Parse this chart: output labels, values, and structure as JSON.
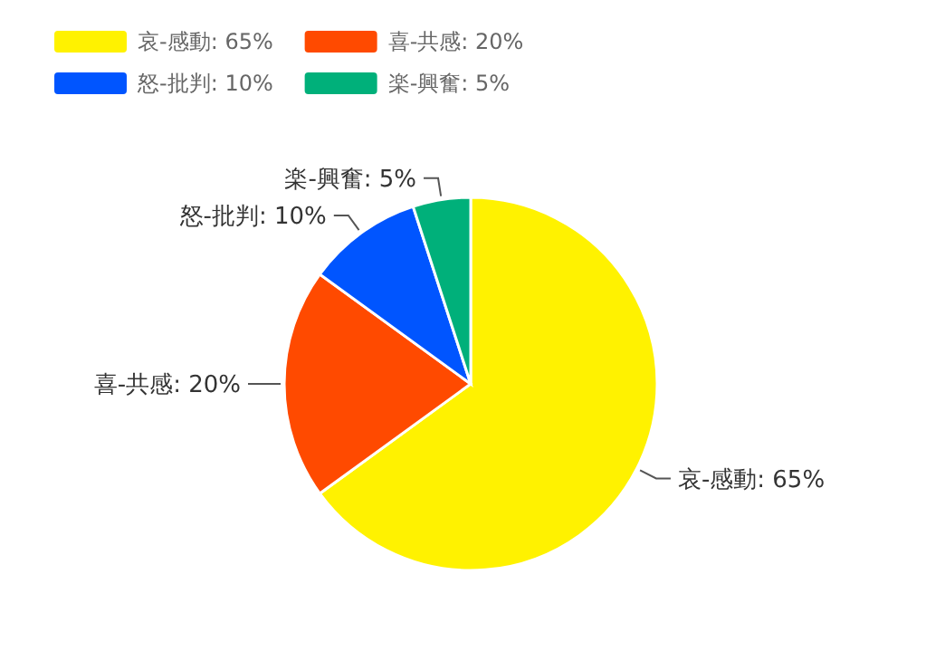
{
  "chart_data": {
    "type": "pie",
    "categories": [
      "哀-感動: 65%",
      "喜-共感: 20%",
      "怒-批判: 10%",
      "楽-興奮: 5%"
    ],
    "values": [
      65,
      20,
      10,
      5
    ],
    "colors": [
      "#fff200",
      "#ff4a00",
      "#0055ff",
      "#00b07a"
    ],
    "legend": "top left"
  }
}
